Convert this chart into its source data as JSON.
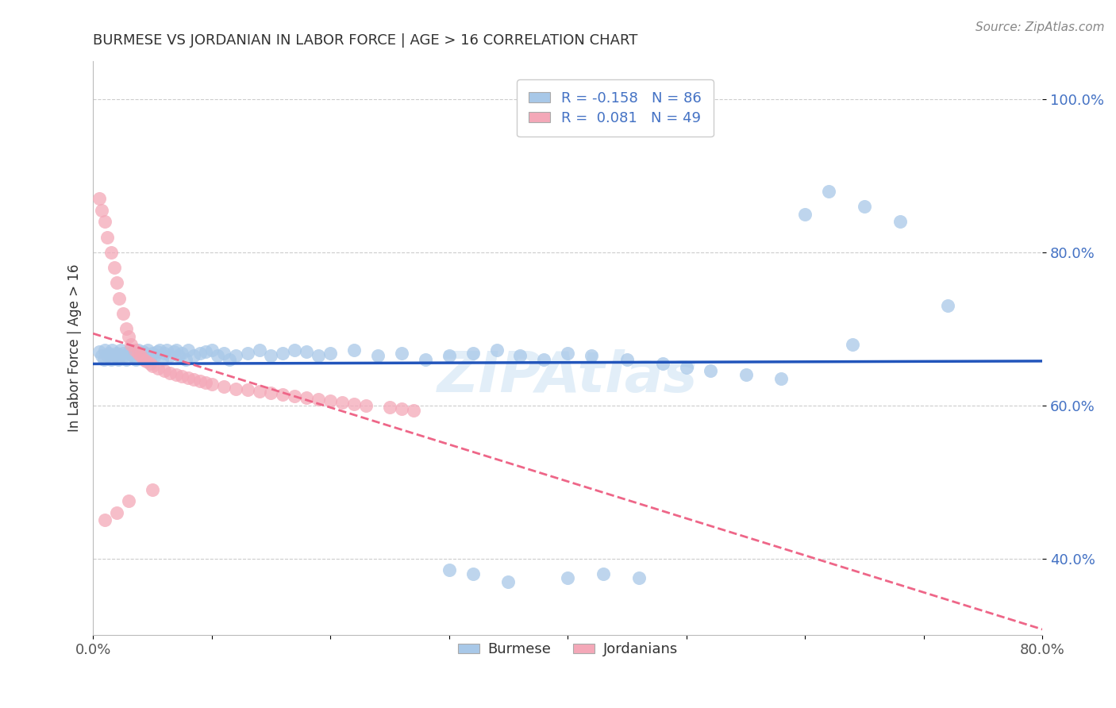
{
  "title": "BURMESE VS JORDANIAN IN LABOR FORCE | AGE > 16 CORRELATION CHART",
  "source_text": "Source: ZipAtlas.com",
  "ylabel": "In Labor Force | Age > 16",
  "xlim": [
    0.0,
    0.8
  ],
  "ylim": [
    0.3,
    1.05
  ],
  "xticks": [
    0.0,
    0.1,
    0.2,
    0.3,
    0.4,
    0.5,
    0.6,
    0.7,
    0.8
  ],
  "xticklabels": [
    "0.0%",
    "",
    "",
    "",
    "",
    "",
    "",
    "",
    "80.0%"
  ],
  "yticks": [
    0.4,
    0.6,
    0.8,
    1.0
  ],
  "yticklabels": [
    "40.0%",
    "60.0%",
    "80.0%",
    "100.0%"
  ],
  "watermark": "ZIPAtlas",
  "legend_burmese_label": "R = -0.158   N = 86",
  "legend_jordanian_label": "R =  0.081   N = 49",
  "burmese_color": "#a8c8e8",
  "jordanian_color": "#f4a8b8",
  "burmese_line_color": "#2255bb",
  "jordanian_line_color": "#ee6688",
  "burmese_x": [
    0.005,
    0.007,
    0.009,
    0.01,
    0.012,
    0.013,
    0.015,
    0.016,
    0.018,
    0.02,
    0.021,
    0.022,
    0.023,
    0.025,
    0.026,
    0.028,
    0.03,
    0.031,
    0.033,
    0.034,
    0.036,
    0.038,
    0.04,
    0.042,
    0.044,
    0.046,
    0.048,
    0.05,
    0.052,
    0.054,
    0.056,
    0.058,
    0.06,
    0.062,
    0.065,
    0.068,
    0.07,
    0.072,
    0.075,
    0.078,
    0.08,
    0.085,
    0.09,
    0.095,
    0.1,
    0.105,
    0.11,
    0.115,
    0.12,
    0.13,
    0.14,
    0.15,
    0.16,
    0.17,
    0.18,
    0.19,
    0.2,
    0.22,
    0.24,
    0.26,
    0.28,
    0.3,
    0.32,
    0.34,
    0.36,
    0.38,
    0.4,
    0.42,
    0.45,
    0.48,
    0.5,
    0.52,
    0.55,
    0.58,
    0.62,
    0.65,
    0.68,
    0.72,
    0.64,
    0.6,
    0.3,
    0.32,
    0.35,
    0.4,
    0.43,
    0.46
  ],
  "burmese_y": [
    0.67,
    0.665,
    0.66,
    0.672,
    0.665,
    0.668,
    0.66,
    0.672,
    0.665,
    0.668,
    0.66,
    0.665,
    0.672,
    0.668,
    0.665,
    0.66,
    0.668,
    0.672,
    0.665,
    0.668,
    0.66,
    0.672,
    0.665,
    0.67,
    0.668,
    0.672,
    0.66,
    0.668,
    0.665,
    0.67,
    0.672,
    0.66,
    0.668,
    0.672,
    0.665,
    0.67,
    0.672,
    0.665,
    0.668,
    0.66,
    0.672,
    0.665,
    0.668,
    0.67,
    0.672,
    0.665,
    0.668,
    0.66,
    0.665,
    0.668,
    0.672,
    0.665,
    0.668,
    0.672,
    0.67,
    0.665,
    0.668,
    0.672,
    0.665,
    0.668,
    0.66,
    0.665,
    0.668,
    0.672,
    0.665,
    0.66,
    0.668,
    0.665,
    0.66,
    0.655,
    0.65,
    0.645,
    0.64,
    0.635,
    0.88,
    0.86,
    0.84,
    0.73,
    0.68,
    0.85,
    0.385,
    0.38,
    0.37,
    0.375,
    0.38,
    0.375
  ],
  "jordanian_x": [
    0.005,
    0.007,
    0.01,
    0.012,
    0.015,
    0.018,
    0.02,
    0.022,
    0.025,
    0.028,
    0.03,
    0.032,
    0.035,
    0.038,
    0.04,
    0.043,
    0.045,
    0.048,
    0.05,
    0.055,
    0.06,
    0.065,
    0.07,
    0.075,
    0.08,
    0.085,
    0.09,
    0.095,
    0.1,
    0.11,
    0.12,
    0.13,
    0.14,
    0.15,
    0.16,
    0.17,
    0.18,
    0.19,
    0.2,
    0.21,
    0.22,
    0.23,
    0.25,
    0.26,
    0.27,
    0.05,
    0.03,
    0.02,
    0.01
  ],
  "jordanian_y": [
    0.87,
    0.855,
    0.84,
    0.82,
    0.8,
    0.78,
    0.76,
    0.74,
    0.72,
    0.7,
    0.69,
    0.68,
    0.672,
    0.668,
    0.665,
    0.66,
    0.658,
    0.655,
    0.652,
    0.648,
    0.645,
    0.642,
    0.64,
    0.638,
    0.636,
    0.634,
    0.632,
    0.63,
    0.628,
    0.625,
    0.622,
    0.62,
    0.618,
    0.616,
    0.614,
    0.612,
    0.61,
    0.608,
    0.606,
    0.604,
    0.602,
    0.6,
    0.598,
    0.596,
    0.594,
    0.49,
    0.475,
    0.46,
    0.45
  ]
}
